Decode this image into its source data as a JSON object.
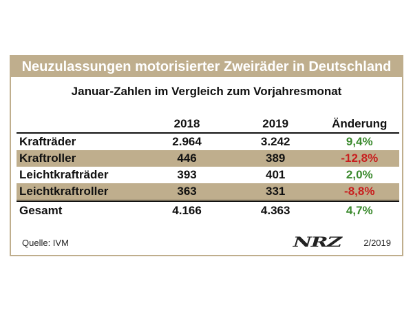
{
  "chart_data": {
    "type": "table",
    "title": "Neuzulassungen motorisierter Zweiräder in Deutschland",
    "subtitle": "Januar-Zahlen im Vergleich zum Vorjahresmonat",
    "columns": [
      "",
      "2018",
      "2019",
      "Änderung"
    ],
    "rows": [
      {
        "category": "Krafträder",
        "v2018": "2.964",
        "v2019": "3.242",
        "change": "9,4%",
        "trend": "pos",
        "shaded": false
      },
      {
        "category": "Kraftroller",
        "v2018": "446",
        "v2019": "389",
        "change": "-12,8%",
        "trend": "neg",
        "shaded": true
      },
      {
        "category": "Leichtkrafträder",
        "v2018": "393",
        "v2019": "401",
        "change": "2,0%",
        "trend": "pos",
        "shaded": false
      },
      {
        "category": "Leichtkraftroller",
        "v2018": "363",
        "v2019": "331",
        "change": "-8,8%",
        "trend": "neg",
        "shaded": true
      }
    ],
    "total": {
      "category": "Gesamt",
      "v2018": "4.166",
      "v2019": "4.363",
      "change": "4,7%",
      "trend": "pos"
    }
  },
  "footer": {
    "source": "Quelle: IVM",
    "logo": "NRZ",
    "date": "2/2019"
  },
  "colors": {
    "header_bar": "#bfae8d",
    "positive": "#3b8a2e",
    "negative": "#c81e1e"
  }
}
